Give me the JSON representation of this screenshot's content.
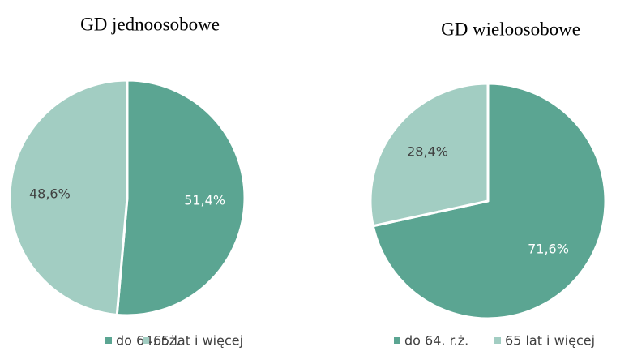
{
  "chart_data": [
    {
      "type": "pie",
      "title": "GD jednoosobowe",
      "categories": [
        "do 64. r.ż.",
        "65 lat i więcej"
      ],
      "values": [
        51.4,
        48.6
      ],
      "value_labels": [
        "51,4%",
        "48,6%"
      ],
      "colors": [
        "#5ba592",
        "#a2cdc2"
      ]
    },
    {
      "type": "pie",
      "title": "GD wieloosobowe",
      "categories": [
        "do 64. r.ż.",
        "65 lat i więcej"
      ],
      "values": [
        71.6,
        28.4
      ],
      "value_labels": [
        "71,6%",
        "28,4%"
      ],
      "colors": [
        "#5ba592",
        "#a2cdc2"
      ]
    }
  ]
}
